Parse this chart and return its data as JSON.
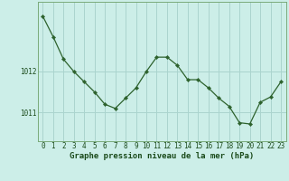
{
  "x": [
    0,
    1,
    2,
    3,
    4,
    5,
    6,
    7,
    8,
    9,
    10,
    11,
    12,
    13,
    14,
    15,
    16,
    17,
    18,
    19,
    20,
    21,
    22,
    23
  ],
  "y": [
    1013.35,
    1012.85,
    1012.3,
    1012.0,
    1011.75,
    1011.5,
    1011.2,
    1011.1,
    1011.35,
    1011.6,
    1012.0,
    1012.35,
    1012.35,
    1012.15,
    1011.8,
    1011.8,
    1011.6,
    1011.35,
    1011.15,
    1010.75,
    1010.72,
    1011.25,
    1011.38,
    1011.75
  ],
  "line_color": "#2d622d",
  "marker": "D",
  "marker_size": 2.2,
  "line_width": 0.9,
  "bg_color": "#cceee8",
  "grid_color": "#aad4ce",
  "xlabel": "Graphe pression niveau de la mer (hPa)",
  "xlabel_fontsize": 6.5,
  "tick_fontsize": 5.5,
  "ytick_labels": [
    "1011",
    "1012"
  ],
  "ylim": [
    1010.3,
    1013.7
  ],
  "xlim": [
    -0.5,
    23.5
  ],
  "yticks": [
    1011.0,
    1012.0
  ],
  "xticks": [
    0,
    1,
    2,
    3,
    4,
    5,
    6,
    7,
    8,
    9,
    10,
    11,
    12,
    13,
    14,
    15,
    16,
    17,
    18,
    19,
    20,
    21,
    22,
    23
  ],
  "spine_color": "#7aaa7a",
  "text_color": "#1a4a1a"
}
